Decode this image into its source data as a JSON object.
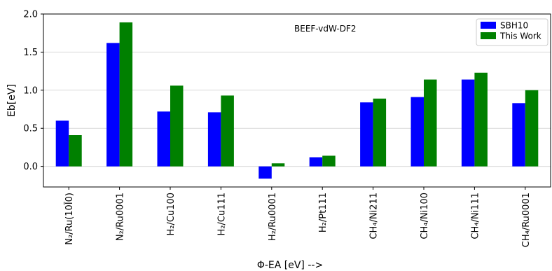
{
  "chart_data": {
    "type": "bar",
    "categories": [
      "N₂/Ru(10Ī0)",
      "N₂/Ru0001",
      "H₂/Cu100",
      "H₂/Cu111",
      "H₂/Ru0001",
      "H₂/Pt111",
      "CH₄/Ni211",
      "CH₄/Ni100",
      "CH₄/Ni111",
      "CH₄/Ru0001"
    ],
    "series": [
      {
        "name": "SBH10",
        "color": "#0000ff",
        "values": [
          0.6,
          1.62,
          0.72,
          0.71,
          -0.16,
          0.12,
          0.84,
          0.91,
          1.14,
          0.83
        ]
      },
      {
        "name": "This Work",
        "color": "#008000",
        "values": [
          0.41,
          1.89,
          1.06,
          0.93,
          0.04,
          0.14,
          0.89,
          1.14,
          1.23,
          1.0
        ]
      }
    ],
    "title": "",
    "annotation": "BEEF-vdW-DF2",
    "xlabel": "Φ-EA [eV] -->",
    "ylabel": "Eb[eV]",
    "ylim": [
      -0.27,
      2.0
    ],
    "yticks": [
      "-0.0",
      "0.5",
      "1.0",
      "1.5",
      "2.0"
    ],
    "ytick_values": [
      0.0,
      0.5,
      1.0,
      1.5,
      2.0
    ],
    "ytick_labels": [
      "0.0",
      "0.5",
      "1.0",
      "1.5",
      "2.0"
    ],
    "grid": "horizontal",
    "legend_position": "top-right"
  }
}
